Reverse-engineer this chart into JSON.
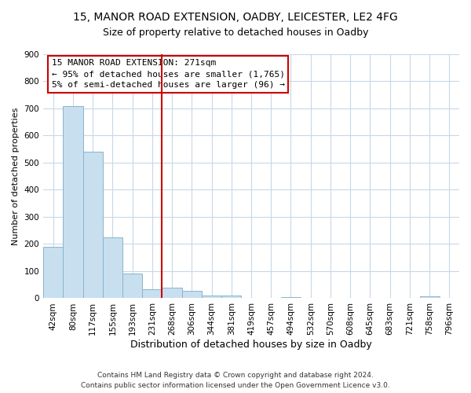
{
  "title1": "15, MANOR ROAD EXTENSION, OADBY, LEICESTER, LE2 4FG",
  "title2": "Size of property relative to detached houses in Oadby",
  "xlabel": "Distribution of detached houses by size in Oadby",
  "ylabel": "Number of detached properties",
  "bar_labels": [
    "42sqm",
    "80sqm",
    "117sqm",
    "155sqm",
    "193sqm",
    "231sqm",
    "268sqm",
    "306sqm",
    "344sqm",
    "381sqm",
    "419sqm",
    "457sqm",
    "494sqm",
    "532sqm",
    "570sqm",
    "608sqm",
    "645sqm",
    "683sqm",
    "721sqm",
    "758sqm",
    "796sqm"
  ],
  "bar_values": [
    190,
    710,
    540,
    225,
    90,
    33,
    40,
    26,
    10,
    10,
    0,
    0,
    3,
    0,
    0,
    0,
    0,
    0,
    0,
    8,
    0
  ],
  "bar_color": "#c8dff0",
  "bar_edge_color": "#8ab4cc",
  "vline_index": 6,
  "vline_color": "#cc0000",
  "annotation_title": "15 MANOR ROAD EXTENSION: 271sqm",
  "annotation_line1": "← 95% of detached houses are smaller (1,765)",
  "annotation_line2": "5% of semi-detached houses are larger (96) →",
  "box_facecolor": "#ffffff",
  "box_edgecolor": "#cc0000",
  "footer1": "Contains HM Land Registry data © Crown copyright and database right 2024.",
  "footer2": "Contains public sector information licensed under the Open Government Licence v3.0.",
  "ylim": [
    0,
    900
  ],
  "yticks": [
    0,
    100,
    200,
    300,
    400,
    500,
    600,
    700,
    800,
    900
  ],
  "grid_color": "#c8d8e8",
  "title1_fontsize": 10,
  "title2_fontsize": 9,
  "xlabel_fontsize": 9,
  "ylabel_fontsize": 8,
  "tick_fontsize": 7.5,
  "annot_fontsize": 8,
  "footer_fontsize": 6.5
}
